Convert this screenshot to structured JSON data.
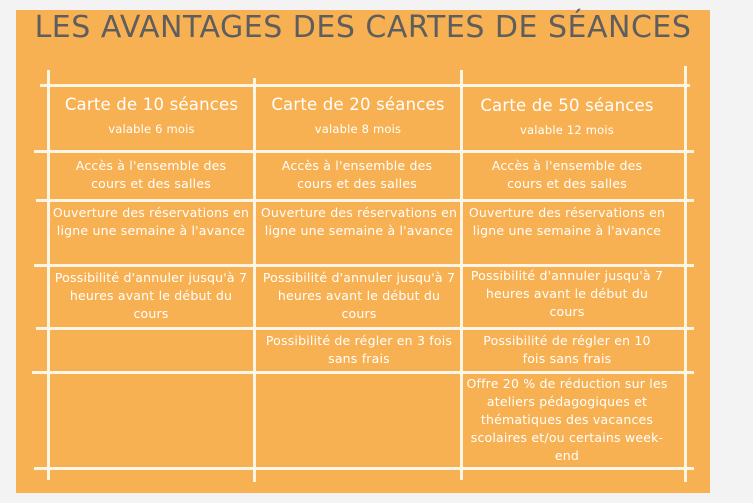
{
  "title": "LES AVANTAGES DES CARTES DE SÉANCES",
  "columns": [
    {
      "name": "Carte de 10 séances",
      "validity": "valable 6 mois"
    },
    {
      "name": "Carte de 20 séances",
      "validity": "valable 8 mois"
    },
    {
      "name": "Carte de 50 séances",
      "validity": "valable 12 mois"
    }
  ],
  "rows": [
    [
      "Accès à l'ensemble des cours et des salles",
      "Accès à l'ensemble des cours et des salles",
      "Accès à l'ensemble des cours et des salles"
    ],
    [
      "Ouverture des réservations en ligne une semaine à l'avance",
      "Ouverture des réservations en ligne une semaine à l'avance",
      "Ouverture des réservations en ligne une semaine à l'avance"
    ],
    [
      "Possibilité d'annuler jusqu'à 7 heures avant le début du cours",
      "Possibilité d'annuler jusqu'à 7 heures avant le début du cours",
      "Possibilité d'annuler jusqu'à 7 heures avant le début du cours"
    ],
    [
      "",
      "Possibilité de régler en 3 fois sans frais",
      "Possibilité de régler en 10 fois sans frais"
    ],
    [
      "",
      "",
      "Offre 20 % de réduction sur les ateliers pédagogiques et thématiques des vacances scolaires et/ou certains week-end"
    ]
  ],
  "colors": {
    "background": "#f8b152",
    "title": "#5e5e5e",
    "cell_text": "#ffffff",
    "grid_lines": "#fff5e6"
  }
}
